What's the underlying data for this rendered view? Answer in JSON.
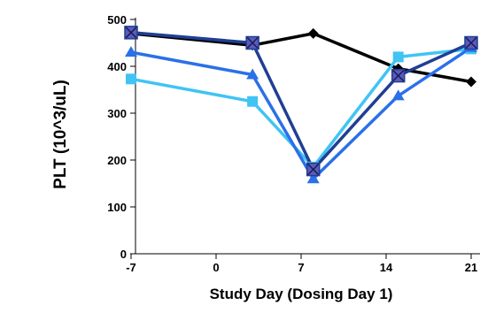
{
  "chart_data": {
    "type": "line",
    "title": "",
    "xlabel": "Study Day (Dosing Day  1)",
    "ylabel": "PLT (10^3/uL)",
    "xlim": [
      -7,
      21
    ],
    "ylim": [
      0,
      500
    ],
    "x_ticks": [
      -7,
      0,
      7,
      14,
      21
    ],
    "y_ticks": [
      0,
      100,
      200,
      300,
      400,
      500
    ],
    "x_tick_labels": [
      "-7",
      "0",
      "7",
      "14",
      "21"
    ],
    "y_tick_labels": [
      "0",
      "100",
      "200",
      "300",
      "400",
      "500"
    ],
    "grid": false,
    "legend": "none",
    "series": [
      {
        "color": "#000000",
        "marker": "diamond",
        "points": [
          [
            -7,
            470
          ],
          [
            3,
            445
          ],
          [
            8,
            470
          ],
          [
            15,
            395
          ],
          [
            21,
            367
          ]
        ]
      },
      {
        "color": "#40c4f4",
        "marker": "square",
        "points": [
          [
            -7,
            373
          ],
          [
            3,
            325
          ],
          [
            8,
            185
          ],
          [
            15,
            420
          ],
          [
            21,
            437
          ]
        ]
      },
      {
        "color": "#2a70e8",
        "marker": "triangle",
        "points": [
          [
            -7,
            430
          ],
          [
            3,
            382
          ],
          [
            8,
            160
          ],
          [
            15,
            337
          ],
          [
            21,
            440
          ]
        ]
      },
      {
        "color": "#1f3f94",
        "marker": "square-x",
        "points": [
          [
            -7,
            472
          ],
          [
            3,
            450
          ],
          [
            8,
            180
          ],
          [
            15,
            380
          ],
          [
            21,
            450
          ]
        ]
      }
    ]
  }
}
